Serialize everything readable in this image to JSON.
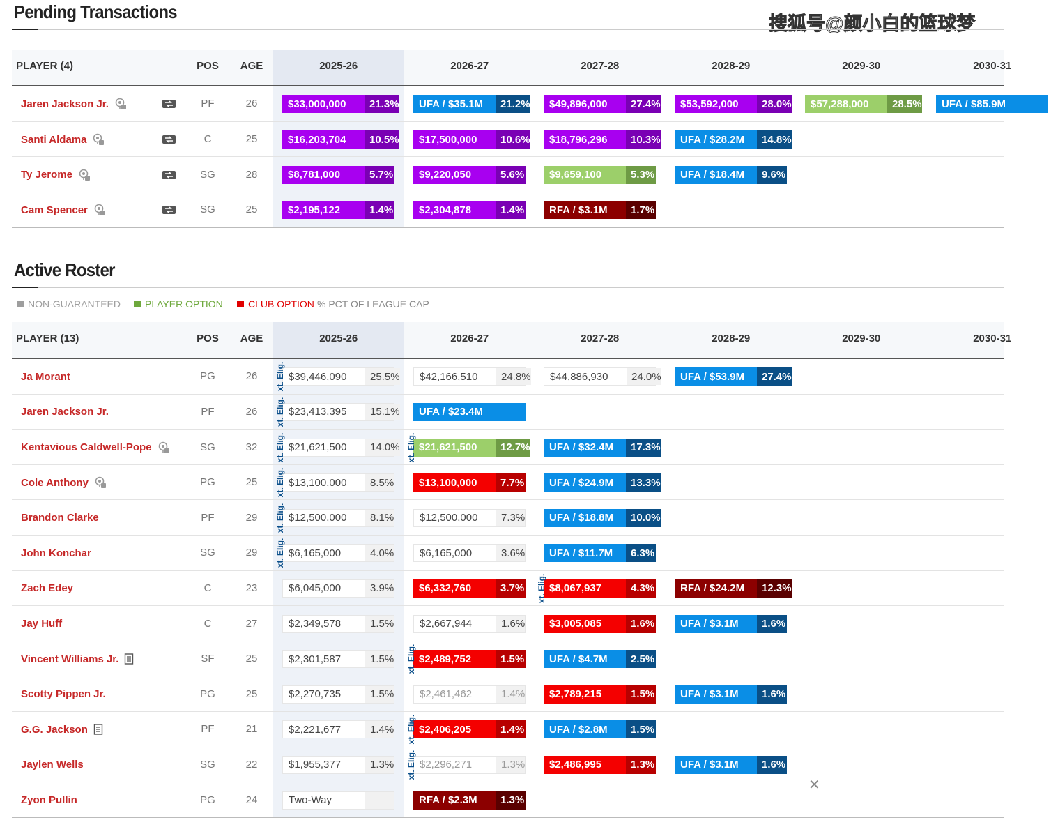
{
  "watermark": "搜狐号@颜小白的篮球梦",
  "pending": {
    "title": "Pending Transactions",
    "headers": {
      "player": "PLAYER (4)",
      "pos": "POS",
      "age": "AGE",
      "years": [
        "2025-26",
        "2026-27",
        "2027-28",
        "2028-29",
        "2029-30",
        "2030-31"
      ]
    },
    "rows": [
      {
        "name": "Jaren Jackson Jr.",
        "icon": "pin",
        "trade": true,
        "pos": "PF",
        "age": "26",
        "cells": [
          {
            "kind": "pending",
            "amount": "$33,000,000",
            "pct": "21.3%"
          },
          {
            "kind": "ufa",
            "amount": "UFA / $35.1M",
            "pct": "21.2%"
          },
          {
            "kind": "pending",
            "amount": "$49,896,000",
            "pct": "27.4%"
          },
          {
            "kind": "pending",
            "amount": "$53,592,000",
            "pct": "28.0%"
          },
          {
            "kind": "player-option",
            "amount": "$57,288,000",
            "pct": "28.5%"
          },
          {
            "kind": "ufa",
            "amount": "UFA / $85.9M"
          }
        ]
      },
      {
        "name": "Santi Aldama",
        "icon": "pin",
        "trade": true,
        "pos": "C",
        "age": "25",
        "cells": [
          {
            "kind": "pending",
            "amount": "$16,203,704",
            "pct": "10.5%"
          },
          {
            "kind": "pending",
            "amount": "$17,500,000",
            "pct": "10.6%"
          },
          {
            "kind": "pending",
            "amount": "$18,796,296",
            "pct": "10.3%"
          },
          {
            "kind": "ufa",
            "amount": "UFA / $28.2M",
            "pct": "14.8%"
          }
        ]
      },
      {
        "name": "Ty Jerome",
        "icon": "pin",
        "trade": true,
        "pos": "SG",
        "age": "28",
        "cells": [
          {
            "kind": "pending",
            "amount": "$8,781,000",
            "pct": "5.7%"
          },
          {
            "kind": "pending",
            "amount": "$9,220,050",
            "pct": "5.6%"
          },
          {
            "kind": "player-option",
            "amount": "$9,659,100",
            "pct": "5.3%"
          },
          {
            "kind": "ufa",
            "amount": "UFA / $18.4M",
            "pct": "9.6%"
          }
        ]
      },
      {
        "name": "Cam Spencer",
        "icon": "pin",
        "trade": true,
        "pos": "SG",
        "age": "25",
        "cells": [
          {
            "kind": "pending",
            "amount": "$2,195,122",
            "pct": "1.4%"
          },
          {
            "kind": "pending",
            "amount": "$2,304,878",
            "pct": "1.4%"
          },
          {
            "kind": "rfa",
            "amount": "RFA / $3.1M",
            "pct": "1.7%"
          }
        ]
      }
    ]
  },
  "active": {
    "title": "Active Roster",
    "legend": [
      {
        "label": "NON-GUARANTEED",
        "color": "#9e9e9e"
      },
      {
        "label": "PLAYER OPTION",
        "color": "#6ea83c"
      },
      {
        "label": "CLUB OPTION",
        "color": "#e00000"
      },
      {
        "label": "% PCT OF LEAGUE CAP",
        "color": "#888888"
      }
    ],
    "headers": {
      "player": "PLAYER (13)",
      "pos": "POS",
      "age": "AGE",
      "years": [
        "2025-26",
        "2026-27",
        "2027-28",
        "2028-29",
        "2029-30",
        "2030-31"
      ]
    },
    "rows": [
      {
        "name": "Ja Morant",
        "pos": "PG",
        "age": "26",
        "cells": [
          {
            "kind": "guaranteed",
            "amount": "$39,446,090",
            "pct": "25.5%",
            "note": "xt. Elig."
          },
          {
            "kind": "guaranteed",
            "amount": "$42,166,510",
            "pct": "24.8%"
          },
          {
            "kind": "guaranteed",
            "amount": "$44,886,930",
            "pct": "24.0%"
          },
          {
            "kind": "ufa",
            "amount": "UFA / $53.9M",
            "pct": "27.4%"
          }
        ]
      },
      {
        "name": "Jaren Jackson Jr.",
        "pos": "PF",
        "age": "26",
        "cells": [
          {
            "kind": "guaranteed",
            "amount": "$23,413,395",
            "pct": "15.1%",
            "note": "xt. Elig."
          },
          {
            "kind": "ufa",
            "amount": "UFA / $23.4M"
          }
        ]
      },
      {
        "name": "Kentavious Caldwell-Pope",
        "icon": "pin",
        "pos": "SG",
        "age": "32",
        "cells": [
          {
            "kind": "guaranteed",
            "amount": "$21,621,500",
            "pct": "14.0%",
            "note": "xt. Elig."
          },
          {
            "kind": "player-option",
            "amount": "$21,621,500",
            "pct": "12.7%",
            "note": "xt. Elig."
          },
          {
            "kind": "ufa",
            "amount": "UFA / $32.4M",
            "pct": "17.3%"
          }
        ]
      },
      {
        "name": "Cole Anthony",
        "icon": "pin",
        "pos": "PG",
        "age": "25",
        "cells": [
          {
            "kind": "guaranteed",
            "amount": "$13,100,000",
            "pct": "8.5%",
            "note": "xt. Elig."
          },
          {
            "kind": "club-option",
            "amount": "$13,100,000",
            "pct": "7.7%"
          },
          {
            "kind": "ufa",
            "amount": "UFA / $24.9M",
            "pct": "13.3%"
          }
        ]
      },
      {
        "name": "Brandon Clarke",
        "pos": "PF",
        "age": "29",
        "cells": [
          {
            "kind": "guaranteed",
            "amount": "$12,500,000",
            "pct": "8.1%",
            "note": "xt. Elig."
          },
          {
            "kind": "guaranteed",
            "amount": "$12,500,000",
            "pct": "7.3%"
          },
          {
            "kind": "ufa",
            "amount": "UFA / $18.8M",
            "pct": "10.0%"
          }
        ]
      },
      {
        "name": "John Konchar",
        "pos": "SG",
        "age": "29",
        "cells": [
          {
            "kind": "guaranteed",
            "amount": "$6,165,000",
            "pct": "4.0%",
            "note": "xt. Elig."
          },
          {
            "kind": "guaranteed",
            "amount": "$6,165,000",
            "pct": "3.6%"
          },
          {
            "kind": "ufa",
            "amount": "UFA / $11.7M",
            "pct": "6.3%"
          }
        ]
      },
      {
        "name": "Zach Edey",
        "pos": "C",
        "age": "23",
        "cells": [
          {
            "kind": "guaranteed",
            "amount": "$6,045,000",
            "pct": "3.9%"
          },
          {
            "kind": "club-option",
            "amount": "$6,332,760",
            "pct": "3.7%"
          },
          {
            "kind": "club-option",
            "amount": "$8,067,937",
            "pct": "4.3%",
            "note": "xt. Elig."
          },
          {
            "kind": "rfa",
            "amount": "RFA / $24.2M",
            "pct": "12.3%"
          }
        ]
      },
      {
        "name": "Jay Huff",
        "pos": "C",
        "age": "27",
        "cells": [
          {
            "kind": "guaranteed",
            "amount": "$2,349,578",
            "pct": "1.5%"
          },
          {
            "kind": "guaranteed",
            "amount": "$2,667,944",
            "pct": "1.6%"
          },
          {
            "kind": "club-option",
            "amount": "$3,005,085",
            "pct": "1.6%"
          },
          {
            "kind": "ufa",
            "amount": "UFA / $3.1M",
            "pct": "1.6%"
          }
        ]
      },
      {
        "name": "Vincent Williams Jr.",
        "icon": "doc",
        "pos": "SF",
        "age": "25",
        "cells": [
          {
            "kind": "guaranteed",
            "amount": "$2,301,587",
            "pct": "1.5%"
          },
          {
            "kind": "club-option",
            "amount": "$2,489,752",
            "pct": "1.5%",
            "note": "xt. Elig."
          },
          {
            "kind": "ufa",
            "amount": "UFA / $4.7M",
            "pct": "2.5%"
          }
        ]
      },
      {
        "name": "Scotty Pippen Jr.",
        "pos": "PG",
        "age": "25",
        "cells": [
          {
            "kind": "guaranteed",
            "amount": "$2,270,735",
            "pct": "1.5%"
          },
          {
            "kind": "non-guaranteed",
            "amount": "$2,461,462",
            "pct": "1.4%"
          },
          {
            "kind": "club-option",
            "amount": "$2,789,215",
            "pct": "1.5%"
          },
          {
            "kind": "ufa",
            "amount": "UFA / $3.1M",
            "pct": "1.6%"
          }
        ]
      },
      {
        "name": "G.G. Jackson",
        "icon": "doc",
        "pos": "PF",
        "age": "21",
        "cells": [
          {
            "kind": "guaranteed",
            "amount": "$2,221,677",
            "pct": "1.4%"
          },
          {
            "kind": "club-option",
            "amount": "$2,406,205",
            "pct": "1.4%",
            "note": "xt. Elig."
          },
          {
            "kind": "ufa",
            "amount": "UFA / $2.8M",
            "pct": "1.5%"
          }
        ]
      },
      {
        "name": "Jaylen Wells",
        "pos": "SG",
        "age": "22",
        "cells": [
          {
            "kind": "guaranteed",
            "amount": "$1,955,377",
            "pct": "1.3%"
          },
          {
            "kind": "non-guaranteed",
            "amount": "$2,296,271",
            "pct": "1.3%",
            "note": "xt. Elig."
          },
          {
            "kind": "club-option",
            "amount": "$2,486,995",
            "pct": "1.3%"
          },
          {
            "kind": "ufa",
            "amount": "UFA / $3.1M",
            "pct": "1.6%"
          }
        ]
      },
      {
        "name": "Zyon Pullin",
        "pos": "PG",
        "age": "24",
        "cells": [
          {
            "kind": "guaranteed",
            "amount": "Two-Way"
          },
          {
            "kind": "rfa",
            "amount": "RFA / $2.3M",
            "pct": "1.3%"
          }
        ]
      }
    ]
  }
}
